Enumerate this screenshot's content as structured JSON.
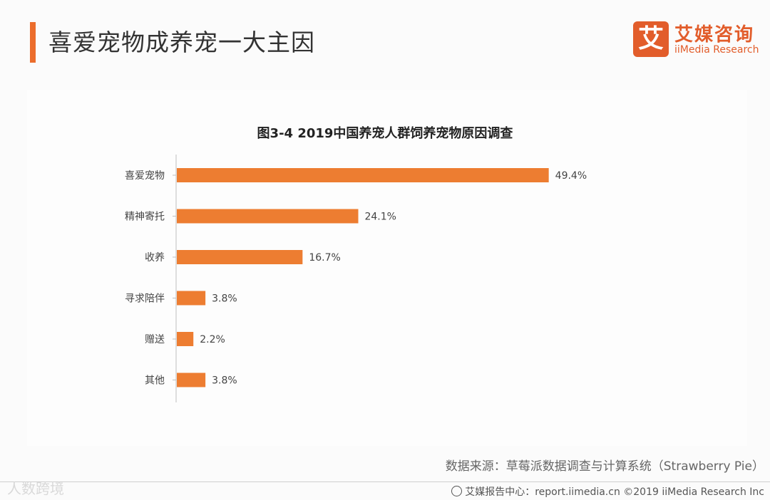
{
  "header": {
    "title": "喜爱宠物成养宠一大主因",
    "logo_mark": "艾",
    "logo_cn": "艾媒咨询",
    "logo_en": "iiMedia Research",
    "accent_color": "#ec6d2c"
  },
  "chart_data": {
    "type": "bar",
    "orientation": "horizontal",
    "title": "图3-4 2019中国养宠人群饲养宠物原因调查",
    "categories": [
      "喜爱宠物",
      "精神寄托",
      "收养",
      "寻求陪伴",
      "赠送",
      "其他"
    ],
    "values": [
      49.4,
      24.1,
      16.7,
      3.8,
      2.2,
      3.8
    ],
    "value_labels": [
      "49.4%",
      "24.1%",
      "16.7%",
      "3.8%",
      "2.2%",
      "3.8%"
    ],
    "unit": "%",
    "xlim": [
      0,
      50
    ],
    "bar_color": "#ed7d31",
    "grid": false,
    "xlabel": "",
    "ylabel": ""
  },
  "footer": {
    "source": "数据来源：草莓派数据调查与计算系统（Strawberry Pie）",
    "report_center": "艾媒报告中心：report.iimedia.cn  ©2019  iiMedia Research  Inc",
    "watermark": "人数跨境"
  }
}
